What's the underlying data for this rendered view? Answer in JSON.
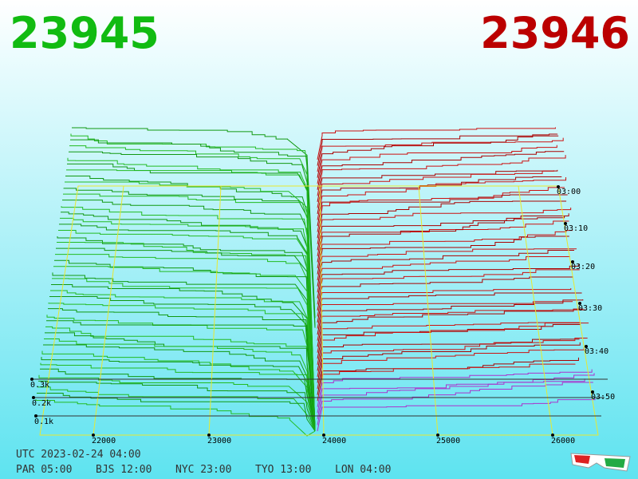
{
  "bid_price": "23945",
  "ask_price": "23946",
  "price_axis": [
    "22000",
    "23000",
    "24000",
    "25000",
    "26000"
  ],
  "time_axis": [
    "03:00",
    "03:10",
    "03:20",
    "03:30",
    "03:40",
    "03:50"
  ],
  "depth_axis": [
    "0.3k",
    "0.2k",
    "0.1k"
  ],
  "utc": "UTC 2023-02-24 04:00",
  "world_clock": [
    "PAR 05:00",
    "BJS 12:00",
    "NYC 23:00",
    "TYO 13:00",
    "LON 04:00"
  ]
}
